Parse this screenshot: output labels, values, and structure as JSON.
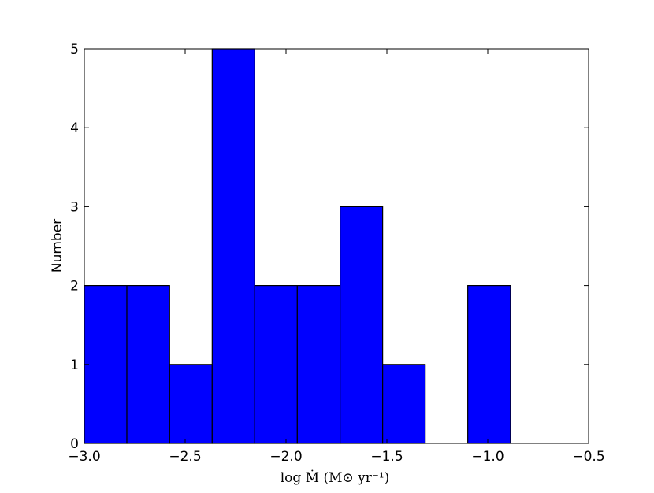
{
  "chart_data": {
    "type": "histogram",
    "x_label": "log Ṁ (M⊙ yr⁻¹)",
    "y_label": "Number",
    "bins": [
      -3.0,
      -2.789,
      -2.577,
      -2.366,
      -2.155,
      -1.944,
      -1.732,
      -1.521,
      -1.31,
      -1.099,
      -0.887
    ],
    "values": [
      2,
      2,
      1,
      5,
      2,
      2,
      3,
      1,
      0,
      2
    ],
    "color": "#0000ff",
    "xlim": [
      -3.0,
      -0.5
    ],
    "xticks": [
      {
        "value": -3.0,
        "label": "−3.0"
      },
      {
        "value": -2.5,
        "label": "−2.5"
      },
      {
        "value": -2.0,
        "label": "−2.0"
      },
      {
        "value": -1.5,
        "label": "−1.5"
      },
      {
        "value": -1.0,
        "label": "−1.0"
      },
      {
        "value": -0.5,
        "label": "−0.5"
      }
    ],
    "ylim": [
      0,
      5
    ],
    "yticks": [
      0,
      1,
      2,
      3,
      4,
      5
    ]
  }
}
